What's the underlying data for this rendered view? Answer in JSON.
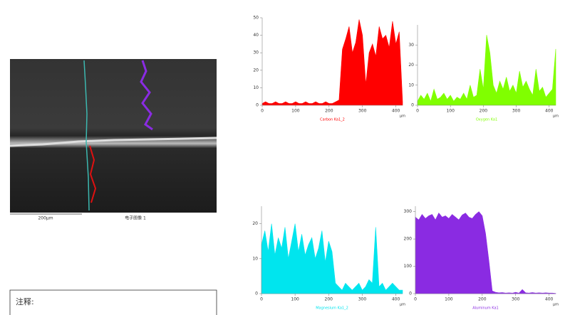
{
  "chart_data": [
    {
      "type": "area",
      "title": "Carbon Ka1_2",
      "x_label": "µm",
      "color": "#ff0000",
      "x": [
        0,
        10,
        20,
        30,
        40,
        50,
        60,
        70,
        80,
        90,
        100,
        110,
        120,
        130,
        140,
        150,
        160,
        170,
        180,
        190,
        200,
        210,
        220,
        230,
        240,
        250,
        260,
        270,
        280,
        290,
        300,
        310,
        320,
        330,
        340,
        350,
        360,
        370,
        380,
        390,
        400,
        410,
        420
      ],
      "values": [
        1,
        2,
        1,
        1,
        2,
        1,
        1,
        2,
        1,
        1,
        2,
        1,
        1,
        2,
        1,
        1,
        2,
        1,
        1,
        2,
        1,
        1,
        2,
        3,
        32,
        38,
        45,
        30,
        36,
        49,
        40,
        12,
        30,
        35,
        28,
        45,
        38,
        40,
        33,
        48,
        35,
        42,
        2
      ],
      "xlim": [
        0,
        420
      ],
      "xticks": [
        0,
        100,
        200,
        300,
        400
      ],
      "ylim": [
        0,
        50
      ],
      "yticks": [
        0,
        10,
        20,
        30,
        40,
        50
      ]
    },
    {
      "type": "area",
      "title": "Oxygen Ka1",
      "x_label": "µm",
      "color": "#80ff00",
      "x": [
        0,
        10,
        20,
        30,
        40,
        50,
        60,
        70,
        80,
        90,
        100,
        110,
        120,
        130,
        140,
        150,
        160,
        170,
        180,
        190,
        200,
        210,
        220,
        230,
        240,
        250,
        260,
        270,
        280,
        290,
        300,
        310,
        320,
        330,
        340,
        350,
        360,
        370,
        380,
        390,
        400,
        410,
        420
      ],
      "values": [
        2,
        5,
        3,
        6,
        2,
        8,
        3,
        4,
        6,
        3,
        5,
        2,
        4,
        3,
        6,
        3,
        10,
        4,
        5,
        18,
        8,
        35,
        26,
        10,
        6,
        12,
        8,
        14,
        7,
        10,
        6,
        17,
        9,
        12,
        8,
        5,
        18,
        7,
        9,
        4,
        6,
        8,
        28
      ],
      "xlim": [
        0,
        420
      ],
      "xticks": [
        0,
        100,
        200,
        300,
        400
      ],
      "ylim": [
        0,
        40
      ],
      "yticks": [
        0,
        10,
        20,
        30
      ]
    },
    {
      "type": "area",
      "title": "Magnesium Ka1_2",
      "x_label": "µm",
      "color": "#00e5ee",
      "x": [
        0,
        10,
        20,
        30,
        40,
        50,
        60,
        70,
        80,
        90,
        100,
        110,
        120,
        130,
        140,
        150,
        160,
        170,
        180,
        190,
        200,
        210,
        220,
        230,
        240,
        250,
        260,
        270,
        280,
        290,
        300,
        310,
        320,
        330,
        340,
        350,
        360,
        370,
        380,
        390,
        400,
        410,
        420
      ],
      "values": [
        14,
        18,
        12,
        20,
        11,
        16,
        13,
        19,
        10,
        15,
        20,
        12,
        17,
        11,
        14,
        16,
        10,
        13,
        18,
        9,
        15,
        12,
        3,
        2,
        1,
        3,
        2,
        1,
        2,
        3,
        1,
        2,
        4,
        3,
        19,
        2,
        3,
        1,
        2,
        3,
        2,
        1,
        1
      ],
      "xlim": [
        0,
        420
      ],
      "xticks": [
        0,
        100,
        200,
        300,
        400
      ],
      "ylim": [
        0,
        25
      ],
      "yticks": [
        0,
        10,
        20
      ]
    },
    {
      "type": "area",
      "title": "Aluminum Ka1",
      "x_label": "µm",
      "color": "#8a2be2",
      "x": [
        0,
        10,
        20,
        30,
        40,
        50,
        60,
        70,
        80,
        90,
        100,
        110,
        120,
        130,
        140,
        150,
        160,
        170,
        180,
        190,
        200,
        210,
        220,
        230,
        240,
        250,
        260,
        270,
        280,
        290,
        300,
        310,
        320,
        330,
        340,
        350,
        360,
        370,
        380,
        390,
        400,
        410,
        420
      ],
      "values": [
        280,
        270,
        290,
        275,
        285,
        290,
        270,
        295,
        280,
        285,
        275,
        290,
        280,
        270,
        288,
        295,
        280,
        275,
        290,
        300,
        285,
        220,
        120,
        10,
        5,
        3,
        4,
        2,
        3,
        2,
        5,
        2,
        15,
        3,
        2,
        4,
        2,
        3,
        2,
        3,
        2,
        2,
        1
      ],
      "xlim": [
        0,
        420
      ],
      "xticks": [
        0,
        100,
        200,
        300,
        400
      ],
      "ylim": [
        0,
        320
      ],
      "yticks": [
        0,
        100,
        200,
        300
      ]
    }
  ],
  "image": {
    "scale_bar": "200µm",
    "caption": "电子图像 1"
  },
  "notes": {
    "label": "注释:"
  }
}
